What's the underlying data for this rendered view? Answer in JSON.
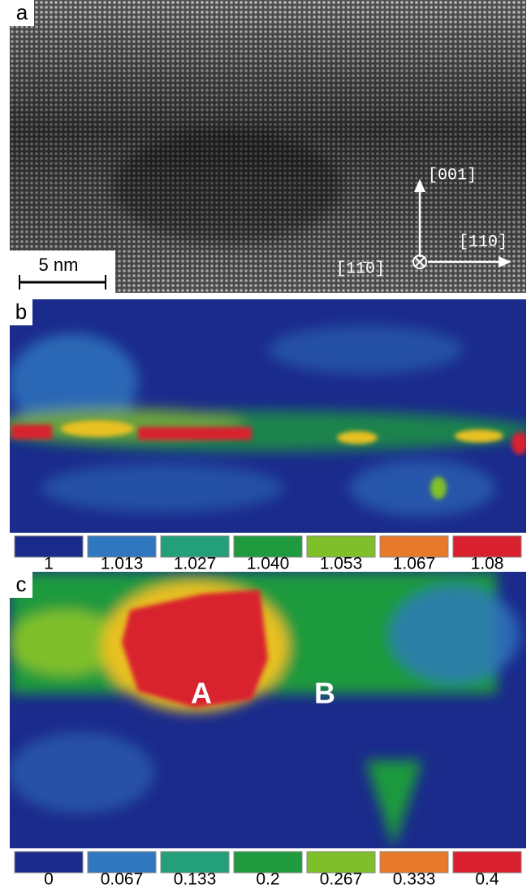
{
  "panels": [
    {
      "label": "a",
      "scale_bar": "5 nm",
      "directions": {
        "up": "[001]",
        "right": "[110]",
        "out": "[11̄0]"
      }
    },
    {
      "label": "b",
      "colorbar": {
        "colors": [
          "#1b2b8c",
          "#2f78c0",
          "#23a07a",
          "#1f9a3e",
          "#7fbf2a",
          "#e8782a",
          "#d8202e"
        ],
        "labels": [
          "1",
          "1.013",
          "1.027",
          "1.040",
          "1.053",
          "1.067",
          "1.08"
        ]
      }
    },
    {
      "label": "c",
      "annotations": [
        "A",
        "B"
      ],
      "colorbar": {
        "colors": [
          "#1b2b8c",
          "#2f78c0",
          "#23a07a",
          "#1f9a3e",
          "#7fbf2a",
          "#e8782a",
          "#d8202e"
        ],
        "labels": [
          "0",
          "0.067",
          "0.133",
          "0.2",
          "0.267",
          "0.333",
          "0.4"
        ]
      }
    }
  ]
}
